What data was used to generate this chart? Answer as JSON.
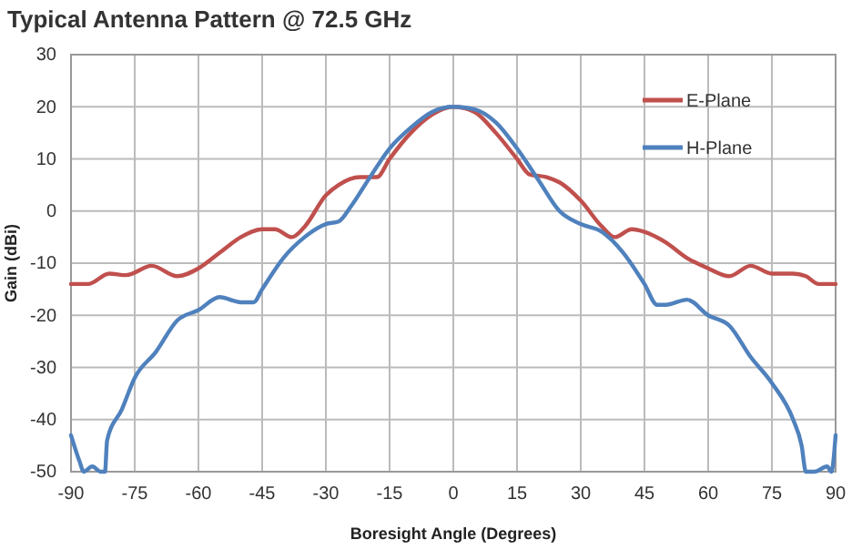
{
  "chart_data": {
    "type": "line",
    "title": "Typical Antenna Pattern @ 72.5 GHz",
    "xlabel": "Boresight Angle (Degrees)",
    "ylabel": "Gain (dBi)",
    "xlim": [
      -90,
      90
    ],
    "xticks": [
      -90,
      -75,
      -60,
      -45,
      -30,
      -15,
      0,
      15,
      30,
      45,
      60,
      75,
      90
    ],
    "ylim": [
      -50,
      30
    ],
    "yticks": [
      -50,
      -40,
      -30,
      -20,
      -10,
      0,
      10,
      20,
      30
    ],
    "grid": true,
    "legend": "top right",
    "marker": "none",
    "line_style": "solid",
    "series": [
      {
        "name": "E-Plane",
        "color": "#c0504d",
        "x": [
          -90,
          -86,
          -81,
          -77,
          -71,
          -65,
          -60,
          -55,
          -50,
          -45,
          -42,
          -38,
          -35,
          -30,
          -27,
          -22,
          -18,
          -15,
          -10,
          -5,
          0,
          5,
          10,
          15,
          18,
          22,
          25,
          30,
          35,
          38,
          42,
          45,
          50,
          55,
          60,
          65,
          70,
          75,
          80,
          83,
          86,
          90
        ],
        "values": [
          -14,
          -14,
          -12,
          -12.3,
          -10.5,
          -12.5,
          -11,
          -8,
          -5,
          -3.5,
          -3.5,
          -5,
          -3,
          3,
          5,
          6.5,
          6.5,
          10,
          15,
          18.5,
          20,
          19,
          15,
          10,
          7,
          6.5,
          5.5,
          2,
          -3,
          -5,
          -3.5,
          -4,
          -6,
          -9,
          -11,
          -12.5,
          -10.5,
          -12,
          -12,
          -12.5,
          -14,
          -14
        ]
      },
      {
        "name": "H-Plane",
        "color": "#4f81bd",
        "x": [
          -90,
          -88,
          -87,
          -85,
          -83,
          -82,
          -81.5,
          -78,
          -75,
          -70,
          -65,
          -60,
          -55,
          -50,
          -47,
          -45,
          -40,
          -35,
          -30,
          -27,
          -24,
          -20,
          -15,
          -10,
          -5,
          0,
          5,
          10,
          15,
          20,
          25,
          30,
          35,
          40,
          45,
          48,
          50,
          55,
          60,
          65,
          70,
          75,
          80,
          82,
          83,
          85,
          88,
          89,
          90
        ],
        "values": [
          -43,
          -48,
          -50,
          -49,
          -50,
          -50,
          -44,
          -38,
          -32,
          -27,
          -21,
          -19,
          -16.5,
          -17.5,
          -17.5,
          -15,
          -9,
          -5,
          -2.5,
          -2,
          1,
          6,
          12,
          16,
          19,
          20,
          19.5,
          17,
          12,
          6,
          0,
          -2.5,
          -4,
          -8,
          -14,
          -18,
          -18,
          -17,
          -20,
          -22,
          -28,
          -33,
          -40,
          -45,
          -50,
          -50,
          -49,
          -50,
          -43
        ]
      }
    ]
  }
}
